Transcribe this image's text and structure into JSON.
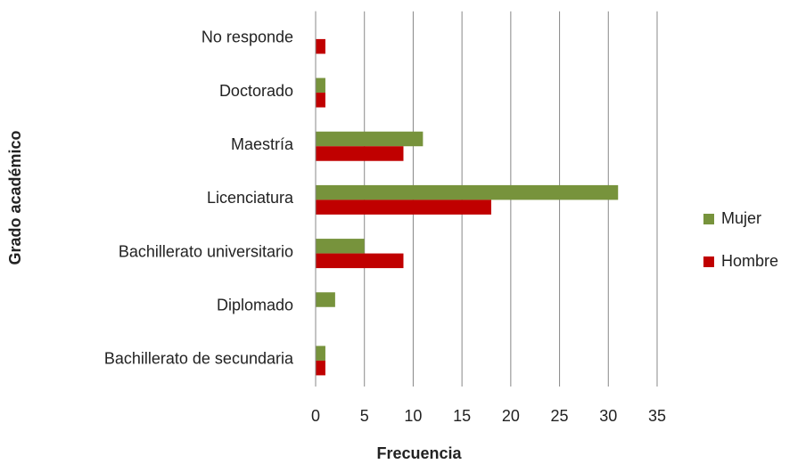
{
  "chart_data": {
    "type": "bar",
    "orientation": "horizontal",
    "x_label": "Frecuencia",
    "y_label": "Grado académico",
    "categories": [
      "No responde",
      "Doctorado",
      "Maestría",
      "Licenciatura",
      "Bachillerato universitario",
      "Diplomado",
      "Bachillerato de secundaria"
    ],
    "series": [
      {
        "name": "Mujer",
        "color": "#77933c",
        "values": [
          0,
          1,
          11,
          31,
          5,
          2,
          1
        ]
      },
      {
        "name": "Hombre",
        "color": "#c00000",
        "values": [
          1,
          1,
          9,
          18,
          9,
          0,
          1
        ]
      }
    ],
    "xlim": [
      0,
      35
    ],
    "xticks": [
      0,
      5,
      10,
      15,
      20,
      25,
      30,
      35
    ],
    "grid": true,
    "legend": "right"
  }
}
